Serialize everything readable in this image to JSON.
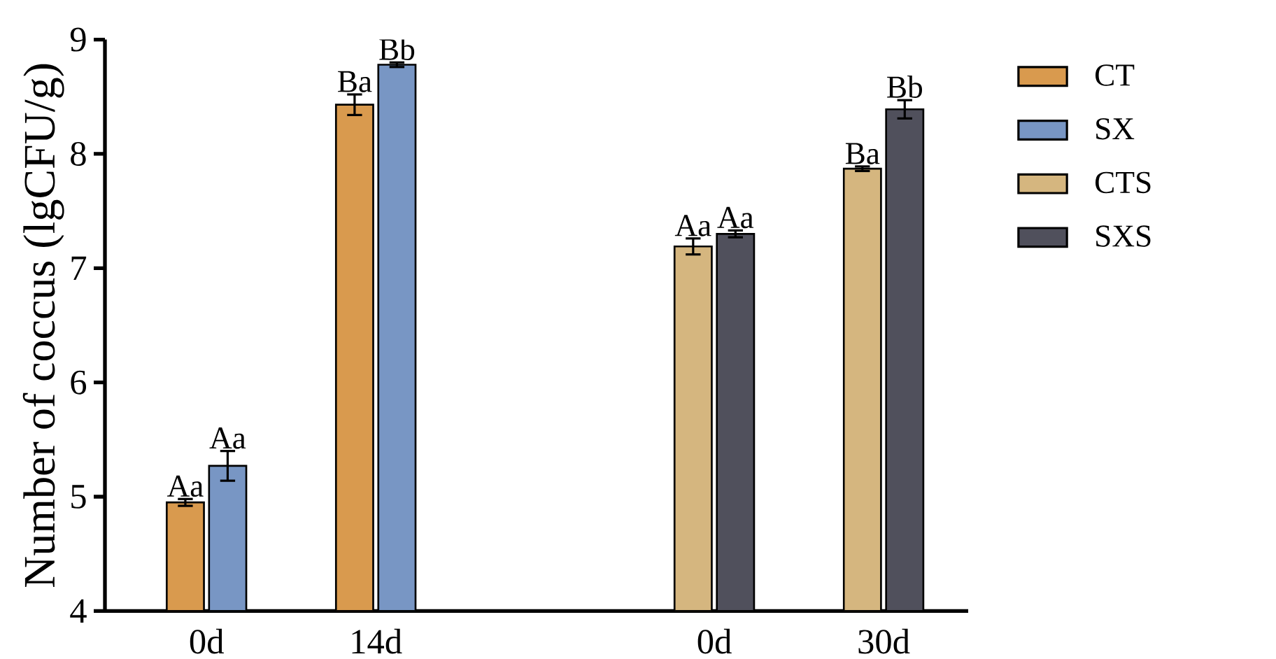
{
  "chart_data": {
    "type": "bar",
    "ylabel": "Number of coccus (lgCFU/g)",
    "categories": [
      "0d",
      "14d",
      null,
      "0d",
      "30d"
    ],
    "series": [
      {
        "name": "CT",
        "color": "#d99a4e",
        "values": [
          4.95,
          8.43,
          null,
          null,
          null
        ],
        "errors": [
          0.03,
          0.09,
          null,
          null,
          null
        ],
        "value_labels": [
          "Aa",
          "Ba",
          null,
          null,
          null
        ]
      },
      {
        "name": "SX",
        "color": "#7896c4",
        "values": [
          5.27,
          8.78,
          null,
          null,
          null
        ],
        "errors": [
          0.13,
          0.02,
          null,
          null,
          null
        ],
        "value_labels": [
          "Aa",
          "Bb",
          null,
          null,
          null
        ]
      },
      {
        "name": "CTS",
        "color": "#d5b67f",
        "values": [
          null,
          null,
          null,
          7.19,
          7.87
        ],
        "errors": [
          null,
          null,
          null,
          0.07,
          0.02
        ],
        "value_labels": [
          null,
          null,
          null,
          "Aa",
          "Ba"
        ]
      },
      {
        "name": "SXS",
        "color": "#50505c",
        "values": [
          null,
          null,
          null,
          7.3,
          8.39
        ],
        "errors": [
          null,
          null,
          null,
          0.03,
          0.08
        ],
        "value_labels": [
          null,
          null,
          null,
          "Aa",
          "Bb"
        ]
      }
    ],
    "ylim": [
      4,
      9
    ],
    "yticks": [
      4,
      5,
      6,
      7,
      8,
      9
    ],
    "legend": "right",
    "grid": false
  }
}
